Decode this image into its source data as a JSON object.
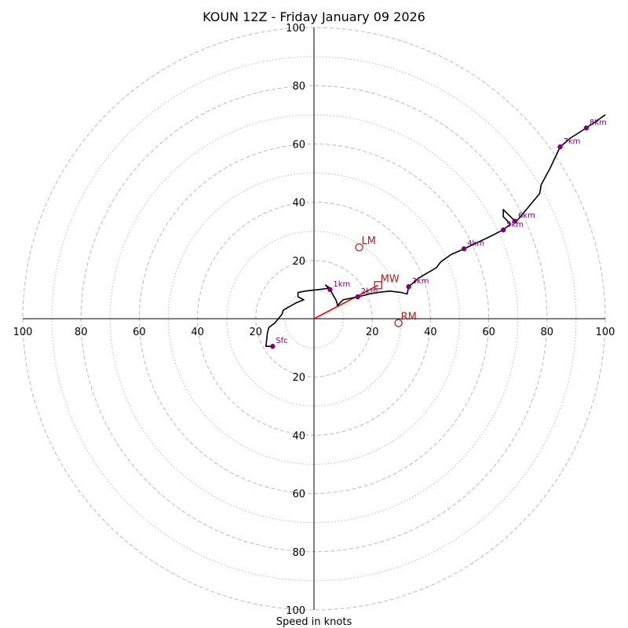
{
  "chart_data": {
    "type": "hodograph",
    "title": "KOUN 12Z - Friday January 09 2026",
    "xlabel": "Speed in knots",
    "ylabel": "",
    "max_speed": 100,
    "ring_major": [
      20,
      40,
      60,
      80,
      100
    ],
    "ring_minor": [
      10,
      30,
      50,
      70,
      90
    ],
    "x_ticks": [
      {
        "value": -100,
        "label": "100"
      },
      {
        "value": -80,
        "label": "80"
      },
      {
        "value": -60,
        "label": "60"
      },
      {
        "value": -40,
        "label": "40"
      },
      {
        "value": -20,
        "label": "20"
      },
      {
        "value": 20,
        "label": "20"
      },
      {
        "value": 40,
        "label": "40"
      },
      {
        "value": 60,
        "label": "60"
      },
      {
        "value": 80,
        "label": "80"
      },
      {
        "value": 100,
        "label": "100"
      }
    ],
    "y_ticks": [
      {
        "value": 100,
        "label": "100"
      },
      {
        "value": 80,
        "label": "80"
      },
      {
        "value": 60,
        "label": "60"
      },
      {
        "value": 40,
        "label": "40"
      },
      {
        "value": 20,
        "label": "20"
      },
      {
        "value": -20,
        "label": "20"
      },
      {
        "value": -40,
        "label": "40"
      },
      {
        "value": -60,
        "label": "60"
      },
      {
        "value": -80,
        "label": "80"
      },
      {
        "value": -100,
        "label": "100"
      }
    ],
    "trace": [
      [
        -14.2,
        -9.5
      ],
      [
        -16.5,
        -9.5
      ],
      [
        -16.0,
        -5.0
      ],
      [
        -15.5,
        -3.0
      ],
      [
        -13.5,
        -1.5
      ],
      [
        -11.0,
        1.5
      ],
      [
        -10.5,
        3.0
      ],
      [
        -6.0,
        5.5
      ],
      [
        -3.5,
        6.5
      ],
      [
        -5.5,
        7.5
      ],
      [
        -5.5,
        9.0
      ],
      [
        -3.0,
        9.5
      ],
      [
        1.5,
        10.0
      ],
      [
        5.5,
        10.5
      ],
      [
        4.0,
        11.5
      ],
      [
        5.5,
        10.0
      ],
      [
        7.5,
        6.5
      ],
      [
        8.0,
        5.0
      ],
      [
        8.0,
        4.5
      ],
      [
        8.5,
        5.0
      ],
      [
        10.0,
        6.5
      ],
      [
        15.0,
        7.5
      ],
      [
        19.0,
        8.5
      ],
      [
        22.0,
        9.0
      ],
      [
        26.0,
        9.5
      ],
      [
        30.0,
        9.0
      ],
      [
        32.0,
        8.5
      ],
      [
        32.5,
        11.0
      ],
      [
        36.0,
        14.0
      ],
      [
        42.0,
        17.5
      ],
      [
        43.5,
        19.5
      ],
      [
        47.0,
        22.0
      ],
      [
        51.5,
        24.0
      ],
      [
        60.0,
        28.0
      ],
      [
        65.0,
        30.5
      ],
      [
        67.5,
        32.5
      ],
      [
        65.0,
        35.0
      ],
      [
        65.0,
        37.5
      ],
      [
        67.5,
        35.0
      ],
      [
        69.0,
        33.5
      ],
      [
        70.0,
        34.0
      ],
      [
        77.5,
        43.0
      ],
      [
        78.0,
        46.0
      ],
      [
        81.0,
        51.5
      ],
      [
        84.5,
        59.0
      ],
      [
        88.0,
        62.0
      ],
      [
        93.5,
        65.5
      ],
      [
        100.0,
        70.0
      ]
    ],
    "height_markers": [
      {
        "label": "Sfc",
        "u": -14.2,
        "v": -9.5
      },
      {
        "label": "1km",
        "u": 5.5,
        "v": 10.0
      },
      {
        "label": "2km",
        "u": 15.0,
        "v": 7.5
      },
      {
        "label": "3km",
        "u": 32.5,
        "v": 11.0
      },
      {
        "label": "4km",
        "u": 51.5,
        "v": 24.0
      },
      {
        "label": "5km",
        "u": 65.0,
        "v": 30.5
      },
      {
        "label": "6km",
        "u": 69.0,
        "v": 33.5
      },
      {
        "label": "7km",
        "u": 84.5,
        "v": 59.0
      },
      {
        "label": "8km",
        "u": 93.5,
        "v": 65.5
      }
    ],
    "motion_points": [
      {
        "label": "LM",
        "u": 15.5,
        "v": 24.5,
        "marker": "circle"
      },
      {
        "label": "MW",
        "u": 22.0,
        "v": 11.5,
        "marker": "square"
      },
      {
        "label": "RM",
        "u": 29.0,
        "v": -1.5,
        "marker": "circle"
      }
    ],
    "shear_vector": {
      "from": [
        0,
        0
      ],
      "to": [
        22.0,
        11.5
      ]
    },
    "colors": {
      "trace": "#000000",
      "markers": "#800080",
      "motion": "#b22222",
      "shear": "#ff0000",
      "ring": "#bbbbbb"
    }
  }
}
